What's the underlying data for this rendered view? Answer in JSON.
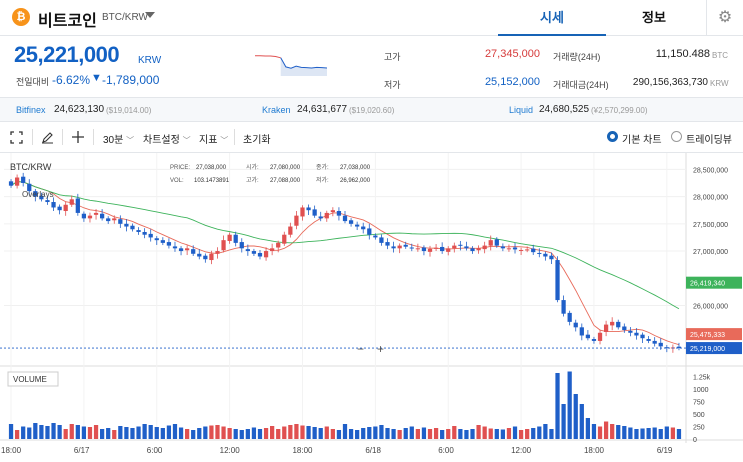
{
  "header": {
    "logo_glyph": "₿",
    "coin_name": "비트코인",
    "coin_symbol": "BTC/KRW",
    "tabs": [
      "시세",
      "정보"
    ]
  },
  "summary": {
    "price": "25,221,000",
    "price_unit": "KRW",
    "change_label": "전일대비",
    "change_pct": "-6.62%",
    "change_arrow": "▼",
    "change_abs": "-1,789,000",
    "high_label": "고가",
    "high_value": "27,345,000",
    "low_label": "저가",
    "low_value": "25,152,000",
    "volume_label": "거래량(24H)",
    "volume_value": "11,150.488",
    "volume_unit": "BTC",
    "amount_label": "거래대금(24H)",
    "amount_value": "290,156,363,730",
    "amount_unit": "KRW",
    "sparkline": [
      0.78,
      0.78,
      0.77,
      0.77,
      0.75,
      0.7,
      0.35,
      0.3,
      0.38,
      0.33,
      0.32,
      0.31,
      0.33,
      0.32,
      0.31
    ]
  },
  "exchanges": [
    {
      "name": "Bitfinex",
      "price": "24,623,130",
      "usd": "($19,014.00)"
    },
    {
      "name": "Kraken",
      "price": "24,631,677",
      "usd": "($19,020.60)"
    },
    {
      "name": "Liquid",
      "price": "24,680,525",
      "usd": "(¥2,570,299.00)"
    }
  ],
  "toolbar": {
    "fullscreen_icon": "fullscreen-icon",
    "draw_icon": "pencil-icon",
    "crosshair_icon": "crosshair-icon",
    "interval": "30분",
    "chart_settings": "차트설정",
    "indicators": "지표",
    "reset": "초기화",
    "view_basic": "기본 차트",
    "view_tradingview": "트레이딩뷰"
  },
  "chart_data": {
    "type": "candlestick",
    "symbol_label": "BTC/KRW",
    "overlays_label": "Overlays",
    "ohlc_info": {
      "price_label": "PRICE:",
      "price": "27,038,000",
      "open_label": "시가:",
      "open": "27,080,000",
      "close_label": "종가:",
      "close": "27,038,000",
      "vol_label": "VOL:",
      "vol": "103.1473891",
      "high_label": "고가:",
      "high": "27,088,000",
      "low_label": "저가:",
      "low": "26,962,000"
    },
    "y_ticks": [
      "28,500,000",
      "28,000,000",
      "27,500,000",
      "27,000,000",
      "26,000,000"
    ],
    "y_tick_values": [
      28500000,
      28000000,
      27500000,
      27000000,
      26000000
    ],
    "ylim": [
      25000000,
      28800000
    ],
    "ma_long_label": "26,419,340",
    "ma_long_value": 26419340,
    "ma_short_label": "25,475,333",
    "ma_short_value": 25475333,
    "current_label": "25,219,000",
    "current_value": 25219000,
    "zoom_minus": "−",
    "zoom_plus": "+",
    "volume_title": "VOLUME",
    "volume_ticks": [
      "1.25k",
      "1000",
      "750",
      "500",
      "250",
      "0"
    ],
    "volume_tick_values": [
      1250,
      1000,
      750,
      500,
      250,
      0
    ],
    "volume_max": 1400,
    "x_labels": [
      "18:00",
      "6/17",
      "6:00",
      "12:00",
      "18:00",
      "6/18",
      "6:00",
      "12:00",
      "18:00",
      "6/19"
    ],
    "x_label_index": [
      0,
      12,
      24,
      36,
      48,
      60,
      72,
      84,
      96,
      108
    ],
    "closes": [
      28200000,
      28350000,
      28250000,
      28100000,
      28000000,
      27950000,
      27900000,
      27800000,
      27750000,
      27850000,
      27950000,
      27700000,
      27600000,
      27650000,
      27700000,
      27600000,
      27550000,
      27600000,
      27500000,
      27450000,
      27400000,
      27350000,
      27300000,
      27250000,
      27200000,
      27150000,
      27100000,
      27050000,
      27000000,
      27050000,
      26950000,
      26900000,
      26850000,
      26950000,
      27000000,
      27200000,
      27300000,
      27150000,
      27050000,
      27000000,
      26950000,
      26900000,
      27000000,
      27050000,
      27150000,
      27300000,
      27450000,
      27650000,
      27800000,
      27750000,
      27650000,
      27600000,
      27700000,
      27750000,
      27650000,
      27550000,
      27500000,
      27450000,
      27400000,
      27300000,
      27250000,
      27150000,
      27100000,
      27050000,
      27100000,
      27080000,
      27050000,
      27050000,
      27000000,
      27040000,
      27060000,
      27000000,
      27050000,
      27100000,
      27100000,
      27050000,
      27000000,
      27050000,
      27100000,
      27200000,
      27100000,
      27050000,
      27050000,
      27030000,
      27020000,
      27030000,
      26980000,
      26950000,
      26900000,
      26850000,
      26100000,
      25850000,
      25700000,
      25600000,
      25450000,
      25400000,
      25350000,
      25500000,
      25650000,
      25700000,
      25600000,
      25550000,
      25500000,
      25450000,
      25400000,
      25350000,
      25300000,
      25250000,
      25220000,
      25230000,
      25219000
    ],
    "volumes": [
      300,
      180,
      250,
      230,
      320,
      280,
      260,
      320,
      280,
      200,
      300,
      280,
      250,
      240,
      280,
      200,
      220,
      180,
      260,
      240,
      220,
      250,
      300,
      280,
      240,
      220,
      270,
      300,
      230,
      200,
      180,
      220,
      250,
      270,
      280,
      250,
      220,
      200,
      180,
      200,
      230,
      200,
      220,
      260,
      200,
      250,
      280,
      300,
      270,
      260,
      240,
      220,
      250,
      200,
      180,
      300,
      200,
      180,
      220,
      240,
      250,
      280,
      220,
      200,
      180,
      220,
      250,
      200,
      230,
      200,
      220,
      180,
      200,
      260,
      200,
      180,
      200,
      280,
      250,
      210,
      200,
      190,
      220,
      250,
      180,
      200,
      220,
      250,
      300,
      200,
      1320,
      700,
      1350,
      900,
      700,
      420,
      300,
      250,
      350,
      300,
      280,
      260,
      230,
      200,
      210,
      220,
      230,
      200,
      250,
      230,
      200
    ]
  },
  "colors": {
    "brand_blue": "#1763b6",
    "price_blue": "#1261c4",
    "up_red": "#e05050",
    "down_blue": "#1f5fc8",
    "ma_green": "#3db35b",
    "ma_red": "#e86a5a"
  }
}
